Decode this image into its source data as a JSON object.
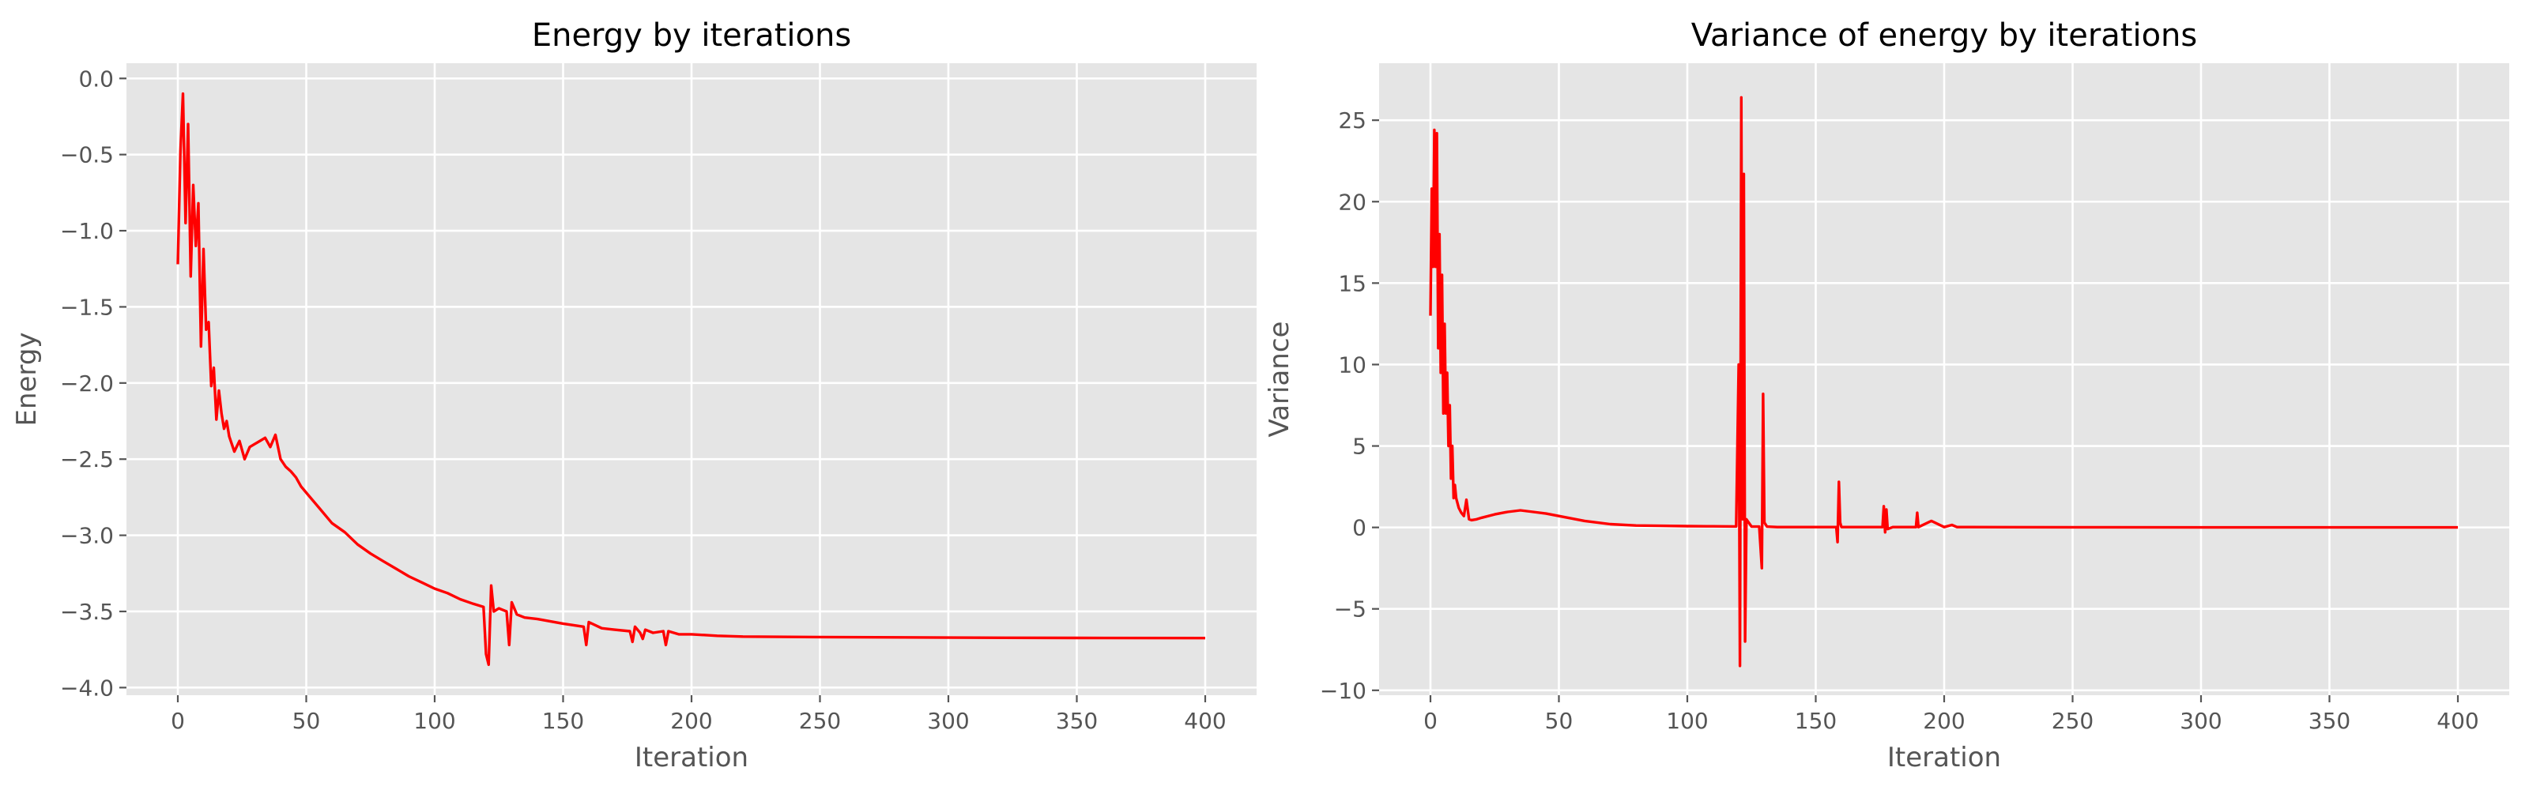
{
  "chart_data": [
    {
      "type": "line",
      "title": "Energy by iterations",
      "xlabel": "Iteration",
      "ylabel": "Energy",
      "xlim": [
        -20,
        420
      ],
      "ylim": [
        -4.05,
        0.1
      ],
      "xticks": [
        0,
        50,
        100,
        150,
        200,
        250,
        300,
        350,
        400
      ],
      "yticks": [
        0.0,
        -0.5,
        -1.0,
        -1.5,
        -2.0,
        -2.5,
        -3.0,
        -3.5,
        -4.0
      ],
      "ytick_labels": [
        "0.0",
        "−0.5",
        "−1.0",
        "−1.5",
        "−2.0",
        "−2.5",
        "−3.0",
        "−3.5",
        "−4.0"
      ],
      "grid": true,
      "series_color": "#ff0000",
      "background_color": "#e5e5e5",
      "series": [
        {
          "x": [
            0,
            1,
            2,
            3,
            4,
            5,
            6,
            7,
            8,
            9,
            10,
            11,
            12,
            13,
            14,
            15,
            16,
            17,
            18,
            19,
            20,
            22,
            24,
            26,
            28,
            30,
            32,
            34,
            36,
            38,
            40,
            42,
            44,
            46,
            48,
            50,
            55,
            60,
            65,
            70,
            75,
            80,
            85,
            90,
            95,
            100,
            105,
            110,
            115,
            119,
            120,
            121,
            122,
            123,
            125,
            128,
            129,
            130,
            132,
            135,
            140,
            150,
            158,
            159,
            160,
            165,
            170,
            176,
            177,
            178,
            180,
            181,
            182,
            185,
            189,
            190,
            191,
            195,
            200,
            210,
            220,
            250,
            300,
            350,
            400
          ],
          "y": [
            -1.22,
            -0.48,
            -0.1,
            -0.95,
            -0.3,
            -1.3,
            -0.7,
            -1.1,
            -0.82,
            -1.76,
            -1.12,
            -1.65,
            -1.6,
            -2.02,
            -1.9,
            -2.24,
            -2.05,
            -2.2,
            -2.3,
            -2.25,
            -2.35,
            -2.45,
            -2.38,
            -2.5,
            -2.42,
            -2.4,
            -2.38,
            -2.36,
            -2.42,
            -2.34,
            -2.5,
            -2.55,
            -2.58,
            -2.62,
            -2.68,
            -2.72,
            -2.82,
            -2.92,
            -2.98,
            -3.06,
            -3.12,
            -3.17,
            -3.22,
            -3.27,
            -3.31,
            -3.35,
            -3.38,
            -3.42,
            -3.45,
            -3.47,
            -3.78,
            -3.85,
            -3.33,
            -3.5,
            -3.48,
            -3.5,
            -3.72,
            -3.44,
            -3.52,
            -3.54,
            -3.55,
            -3.58,
            -3.6,
            -3.72,
            -3.57,
            -3.61,
            -3.62,
            -3.63,
            -3.7,
            -3.6,
            -3.64,
            -3.68,
            -3.62,
            -3.64,
            -3.63,
            -3.72,
            -3.63,
            -3.65,
            -3.65,
            -3.66,
            -3.665,
            -3.668,
            -3.672,
            -3.674,
            -3.675
          ]
        }
      ]
    },
    {
      "type": "line",
      "title": "Variance of energy by iterations",
      "xlabel": "Iteration",
      "ylabel": "Variance",
      "xlim": [
        -20,
        420
      ],
      "ylim": [
        -10.3,
        28.5
      ],
      "xticks": [
        0,
        50,
        100,
        150,
        200,
        250,
        300,
        350,
        400
      ],
      "yticks": [
        25,
        20,
        15,
        10,
        5,
        0,
        -5,
        -10
      ],
      "ytick_labels": [
        "25",
        "20",
        "15",
        "10",
        "5",
        "0",
        "−5",
        "−10"
      ],
      "grid": true,
      "series_color": "#ff0000",
      "background_color": "#e5e5e5",
      "series": [
        {
          "x": [
            0,
            0.5,
            1,
            1.5,
            2,
            2.5,
            3,
            3.5,
            4,
            4.5,
            5,
            5.5,
            6,
            6.5,
            7,
            7.5,
            8,
            8.5,
            9,
            9.5,
            10,
            11,
            12,
            13,
            14,
            15,
            16,
            18,
            20,
            25,
            30,
            35,
            40,
            45,
            50,
            60,
            70,
            80,
            90,
            100,
            110,
            119,
            120,
            120.5,
            121,
            121.5,
            122,
            122.5,
            123,
            125,
            128,
            129,
            129.5,
            130,
            131,
            135,
            150,
            158,
            158.5,
            159,
            159.5,
            160,
            165,
            170,
            176,
            176.5,
            177,
            177.5,
            178,
            180,
            181,
            182,
            185,
            189,
            189.5,
            190,
            195,
            200,
            203,
            205,
            210,
            250,
            300,
            350,
            400
          ],
          "y": [
            13,
            20.8,
            16,
            24.4,
            16,
            24.2,
            11,
            18,
            9.5,
            15.5,
            7,
            12.5,
            7,
            9.5,
            5,
            7.5,
            3,
            5,
            1.8,
            2.6,
            1.8,
            1.2,
            0.9,
            0.7,
            1.7,
            0.5,
            0.45,
            0.5,
            0.6,
            0.8,
            0.95,
            1.05,
            0.95,
            0.85,
            0.7,
            0.4,
            0.2,
            0.12,
            0.1,
            0.08,
            0.07,
            0.06,
            10,
            -8.5,
            26.4,
            0.5,
            21.7,
            -7,
            0.5,
            0.05,
            0.05,
            -2.5,
            8.2,
            0.3,
            0.05,
            0.02,
            0.02,
            0.02,
            -0.9,
            2.8,
            0.3,
            0.02,
            0.02,
            0.02,
            0.02,
            1.3,
            -0.3,
            1.1,
            -0.1,
            0.02,
            0.02,
            0.02,
            0.02,
            0.02,
            0.9,
            0.02,
            0.4,
            0.02,
            0.15,
            0.02,
            0.02,
            0.01,
            0.0,
            0.0,
            0.0
          ]
        }
      ]
    }
  ]
}
